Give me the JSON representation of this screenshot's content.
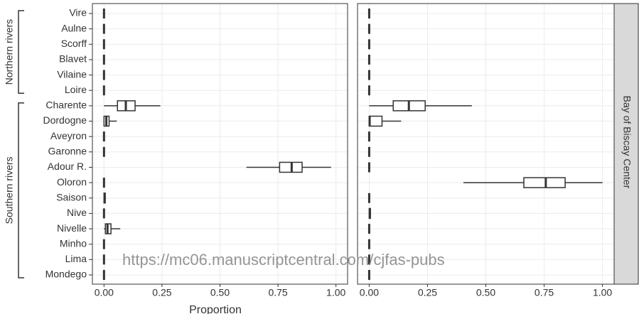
{
  "chart_data": {
    "type": "boxplot",
    "strip_label": "Bay of Biscay Center",
    "x_label": "Proportion",
    "watermark": "https://mc06.manuscriptcentral.com/cjfas-pubs",
    "categories": [
      "Vire",
      "Aulne",
      "Scorff",
      "Blavet",
      "Vilaine",
      "Loire",
      "Charente",
      "Dordogne",
      "Aveyron",
      "Garonne",
      "Adour R.",
      "Oloron",
      "Saison",
      "Nive",
      "Nivelle",
      "Minho",
      "Lima",
      "Mondego"
    ],
    "groups": [
      {
        "label": "Northern rivers",
        "size": 6
      },
      {
        "label": "Southern rivers",
        "size": 12
      }
    ],
    "xlim": [
      -0.05,
      1.05
    ],
    "xticks": [
      {
        "value": 0,
        "label": "0.00"
      },
      {
        "value": 0.25,
        "label": "0.25"
      },
      {
        "value": 0.5,
        "label": "0.50"
      },
      {
        "value": 0.75,
        "label": "0.75"
      },
      {
        "value": 1,
        "label": "1.00"
      }
    ],
    "grid": true,
    "color": "#333333",
    "panels": [
      {
        "values": [
          [
            0,
            0,
            0,
            0,
            0
          ],
          [
            0,
            0,
            0,
            0,
            0
          ],
          [
            0,
            0,
            0,
            0,
            0
          ],
          [
            0,
            0,
            0,
            0,
            0
          ],
          [
            0,
            0,
            0,
            0,
            0
          ],
          [
            0,
            0,
            0,
            0,
            0
          ],
          [
            0,
            0.058,
            0.094,
            0.134,
            0.243
          ],
          [
            0,
            0,
            0.01,
            0.022,
            0.055
          ],
          [
            0,
            0,
            0,
            0,
            0
          ],
          [
            0,
            0,
            0,
            0,
            0
          ],
          [
            0.614,
            0.757,
            0.809,
            0.854,
            0.979
          ],
          [
            0,
            0,
            0,
            0,
            0
          ],
          [
            0,
            0,
            0.003,
            0.005,
            0.008
          ],
          [
            0,
            0,
            0,
            0,
            0
          ],
          [
            0,
            0.006,
            0.015,
            0.03,
            0.07
          ],
          [
            0,
            0,
            0,
            0,
            0
          ],
          [
            0,
            0,
            0,
            0,
            0
          ],
          [
            0,
            0,
            0,
            0,
            0
          ]
        ]
      },
      {
        "values": [
          [
            0,
            0,
            0,
            0,
            0
          ],
          [
            0,
            0,
            0,
            0,
            0
          ],
          [
            0,
            0,
            0,
            0,
            0
          ],
          [
            0,
            0,
            0,
            0,
            0
          ],
          [
            0,
            0,
            0,
            0,
            0
          ],
          [
            0,
            0,
            0,
            0,
            0
          ],
          [
            0,
            0.103,
            0.17,
            0.24,
            0.44
          ],
          [
            0,
            0,
            0.002,
            0.055,
            0.137
          ],
          [
            0,
            0,
            0,
            0,
            0
          ],
          [
            0,
            0,
            0,
            0,
            0
          ],
          [
            0,
            0,
            0,
            0,
            0
          ],
          [
            0.404,
            0.663,
            0.757,
            0.84,
            1
          ],
          [
            0,
            0,
            0,
            0,
            0
          ],
          [
            0,
            0,
            0.003,
            0.005,
            0.008
          ],
          [
            0,
            0,
            0,
            0,
            0
          ],
          [
            0,
            0,
            0,
            0,
            0
          ],
          [
            0,
            0,
            0,
            0,
            0
          ],
          [
            0,
            0,
            0,
            0,
            0
          ]
        ]
      }
    ]
  }
}
